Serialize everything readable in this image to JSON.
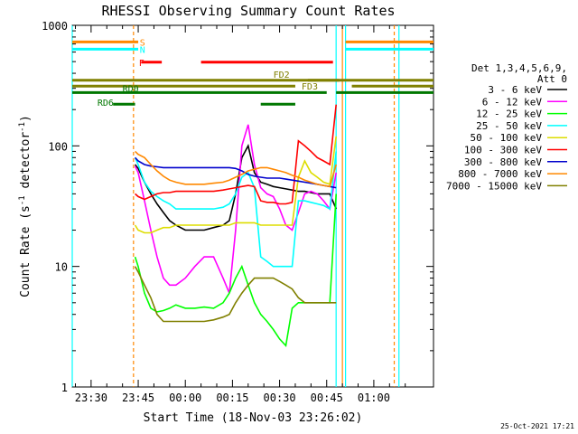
{
  "chart_data": {
    "type": "line",
    "title": "RHESSI Observing Summary Count Rates",
    "xlabel": "Start Time (18-Nov-03 23:26:02)",
    "ylabel_main": "Count Rate (s",
    "ylabel_sup1": "-1",
    "ylabel_mid": " detector",
    "ylabel_sup2": "-1",
    "ylabel_end": ")",
    "yscale": "log",
    "ylim": [
      1,
      1000
    ],
    "xlim_minutes": [
      -36,
      79
    ],
    "x_ticks": [
      {
        "label": "23:30",
        "m": -30
      },
      {
        "label": "23:45",
        "m": -15
      },
      {
        "label": "00:00",
        "m": 0
      },
      {
        "label": "00:15",
        "m": 15
      },
      {
        "label": "00:30",
        "m": 30
      },
      {
        "label": "00:45",
        "m": 45
      },
      {
        "label": "01:00",
        "m": 60
      }
    ],
    "y_ticks": [
      {
        "label": "1",
        "v": 1
      },
      {
        "label": "10",
        "v": 10
      },
      {
        "label": "100",
        "v": 100
      },
      {
        "label": "1000",
        "v": 1000
      }
    ],
    "legend_title": [
      "Det 1,3,4,5,6,9,",
      "Att 0"
    ],
    "series": [
      {
        "name": "3 - 6 keV",
        "color": "#000000",
        "x": [
          -16,
          -15,
          -13,
          -11,
          -9,
          -7,
          -5,
          -3,
          0,
          3,
          6,
          9,
          12,
          14,
          16,
          18,
          20,
          22,
          24,
          26,
          28,
          30,
          32,
          34,
          36,
          38,
          40,
          42,
          44,
          46,
          48
        ],
        "y": [
          70,
          65,
          50,
          40,
          33,
          28,
          24,
          22,
          20,
          20,
          20,
          21,
          22,
          24,
          40,
          80,
          100,
          60,
          50,
          48,
          46,
          45,
          44,
          43,
          42,
          42,
          41,
          40,
          40,
          40,
          30
        ]
      },
      {
        "name": "6 - 12 keV",
        "color": "#ff00ff",
        "x": [
          -16,
          -15,
          -13,
          -11,
          -9,
          -7,
          -5,
          -3,
          0,
          3,
          6,
          9,
          12,
          14,
          16,
          18,
          20,
          22,
          24,
          26,
          28,
          30,
          32,
          34,
          36,
          38,
          40,
          42,
          44,
          46,
          48
        ],
        "y": [
          68,
          60,
          35,
          20,
          12,
          8,
          7,
          7,
          8,
          10,
          12,
          12,
          8,
          6,
          20,
          100,
          150,
          70,
          45,
          40,
          38,
          30,
          22,
          20,
          28,
          40,
          42,
          40,
          35,
          30,
          60
        ]
      },
      {
        "name": "12 - 25 keV",
        "color": "#00ff00",
        "x": [
          -16,
          -15,
          -13,
          -11,
          -9,
          -7,
          -5,
          -3,
          0,
          3,
          6,
          9,
          12,
          14,
          16,
          18,
          20,
          22,
          24,
          26,
          28,
          30,
          32,
          34,
          36,
          38,
          40,
          42,
          44,
          46,
          48
        ],
        "y": [
          12,
          10,
          6,
          4.5,
          4.2,
          4.3,
          4.5,
          4.8,
          4.5,
          4.5,
          4.6,
          4.5,
          5,
          6,
          8,
          10,
          7,
          5,
          4,
          3.5,
          3,
          2.5,
          2.2,
          4.5,
          5,
          5,
          5,
          5,
          5,
          5,
          40
        ]
      },
      {
        "name": "25 - 50 keV",
        "color": "#00ffff",
        "x": [
          -16,
          -15,
          -13,
          -11,
          -9,
          -7,
          -5,
          -3,
          0,
          3,
          6,
          9,
          12,
          14,
          16,
          18,
          20,
          22,
          24,
          26,
          28,
          30,
          32,
          34,
          36,
          38,
          40,
          42,
          44,
          46,
          48
        ],
        "y": [
          80,
          70,
          50,
          42,
          38,
          35,
          33,
          30,
          30,
          30,
          30,
          30,
          31,
          33,
          40,
          55,
          60,
          45,
          12,
          11,
          10,
          10,
          10,
          10,
          35,
          35,
          34,
          33,
          32,
          30,
          90
        ]
      },
      {
        "name": "50 - 100 keV",
        "color": "#dddd00",
        "x": [
          -16,
          -15,
          -13,
          -11,
          -9,
          -7,
          -5,
          -3,
          0,
          3,
          6,
          9,
          12,
          14,
          16,
          18,
          20,
          22,
          24,
          26,
          28,
          30,
          32,
          34,
          36,
          38,
          40,
          42,
          44,
          46,
          48
        ],
        "y": [
          22,
          20,
          19,
          19,
          20,
          21,
          21,
          22,
          22,
          22,
          22,
          22,
          22,
          22,
          23,
          23,
          23,
          23,
          22,
          22,
          22,
          22,
          22,
          22,
          55,
          75,
          60,
          55,
          50,
          48,
          120
        ]
      },
      {
        "name": "100 - 300 keV",
        "color": "#ff0000",
        "x": [
          -16,
          -15,
          -13,
          -11,
          -9,
          -7,
          -5,
          -3,
          0,
          3,
          6,
          9,
          12,
          14,
          16,
          18,
          20,
          22,
          24,
          26,
          28,
          30,
          32,
          34,
          36,
          38,
          40,
          42,
          44,
          46,
          48
        ],
        "y": [
          40,
          38,
          36,
          38,
          40,
          41,
          41,
          42,
          42,
          42,
          42,
          42,
          43,
          44,
          45,
          46,
          47,
          46,
          35,
          34,
          34,
          33,
          33,
          34,
          110,
          100,
          90,
          80,
          75,
          70,
          220
        ]
      },
      {
        "name": "300 - 800 keV",
        "color": "#0000cc",
        "x": [
          -16,
          -15,
          -13,
          -11,
          -9,
          -7,
          -5,
          -3,
          0,
          3,
          6,
          9,
          12,
          14,
          16,
          18,
          20,
          22,
          24,
          26,
          28,
          30,
          32,
          34,
          36,
          38,
          40,
          42,
          44,
          46,
          48
        ],
        "y": [
          80,
          75,
          70,
          68,
          67,
          66,
          66,
          66,
          66,
          66,
          66,
          66,
          66,
          66,
          65,
          62,
          58,
          56,
          55,
          54,
          54,
          54,
          53,
          52,
          51,
          50,
          49,
          48,
          47,
          46,
          45
        ]
      },
      {
        "name": "800 - 7000 keV",
        "color": "#ff8800",
        "x": [
          -16,
          -15,
          -13,
          -11,
          -9,
          -7,
          -5,
          -3,
          0,
          3,
          6,
          9,
          12,
          14,
          16,
          18,
          20,
          22,
          24,
          26,
          28,
          30,
          32,
          34,
          36,
          38,
          40,
          42,
          44,
          46,
          48
        ],
        "y": [
          90,
          85,
          80,
          70,
          62,
          56,
          52,
          50,
          48,
          48,
          48,
          49,
          50,
          52,
          55,
          58,
          62,
          64,
          66,
          66,
          64,
          62,
          60,
          57,
          55,
          52,
          50,
          48,
          47,
          46,
          70
        ]
      },
      {
        "name": "7000 - 15000 keV",
        "color": "#808000",
        "x": [
          -16,
          -15,
          -13,
          -11,
          -9,
          -7,
          -5,
          -3,
          0,
          3,
          6,
          9,
          12,
          14,
          16,
          18,
          20,
          22,
          24,
          26,
          28,
          30,
          32,
          34,
          36,
          38,
          40,
          42,
          44,
          46,
          48
        ],
        "y": [
          10,
          9,
          7,
          5.5,
          4,
          3.5,
          3.5,
          3.5,
          3.5,
          3.5,
          3.5,
          3.6,
          3.8,
          4,
          5,
          6,
          7,
          8,
          8,
          8,
          8,
          7.5,
          7,
          6.5,
          5.5,
          5,
          5,
          5,
          5,
          5,
          5
        ]
      }
    ],
    "flag_bars": [
      {
        "label": "S",
        "color": "#ff8800",
        "segments": [
          [
            -36,
            -15
          ],
          [
            51,
            79
          ]
        ],
        "y_frac": 0.046
      },
      {
        "label": "N",
        "color": "#00ffff",
        "segments": [
          [
            -36,
            -15
          ],
          [
            51,
            79
          ]
        ],
        "y_frac": 0.066
      },
      {
        "label": "F",
        "color": "#ff0000",
        "segments": [
          [
            -14,
            -7.5
          ],
          [
            5,
            47
          ]
        ],
        "y_frac": 0.102
      },
      {
        "label": "FD2",
        "color": "#808000",
        "segments": [
          [
            -36,
            49
          ],
          [
            39,
            79
          ]
        ],
        "y_frac": 0.152
      },
      {
        "label": "FD3",
        "color": "#808000",
        "segments": [
          [
            -36,
            35
          ],
          [
            53,
            79
          ]
        ],
        "y_frac": 0.168
      },
      {
        "label": "RD0",
        "color": "#007700",
        "segments": [
          [
            -36,
            45
          ],
          [
            48,
            79
          ]
        ],
        "y_frac": 0.186
      },
      {
        "label": "RD6",
        "color": "#007700",
        "segments": [
          [
            -23,
            -16
          ],
          [
            24,
            35
          ]
        ],
        "y_frac": 0.218
      }
    ],
    "vertical_lines": [
      {
        "m": -36,
        "color": "#00ffff",
        "style": "solid"
      },
      {
        "m": -16.5,
        "color": "#ff8800",
        "style": "dash"
      },
      {
        "m": 48,
        "color": "#00ffff",
        "style": "solid"
      },
      {
        "m": 50,
        "color": "#ff8800",
        "style": "solid"
      },
      {
        "m": 51,
        "color": "#00ffff",
        "style": "solid"
      },
      {
        "m": 66.5,
        "color": "#ff8800",
        "style": "dash"
      },
      {
        "m": 68,
        "color": "#00ffff",
        "style": "solid"
      }
    ],
    "timestamp": "25-Oct-2021 17:21"
  }
}
